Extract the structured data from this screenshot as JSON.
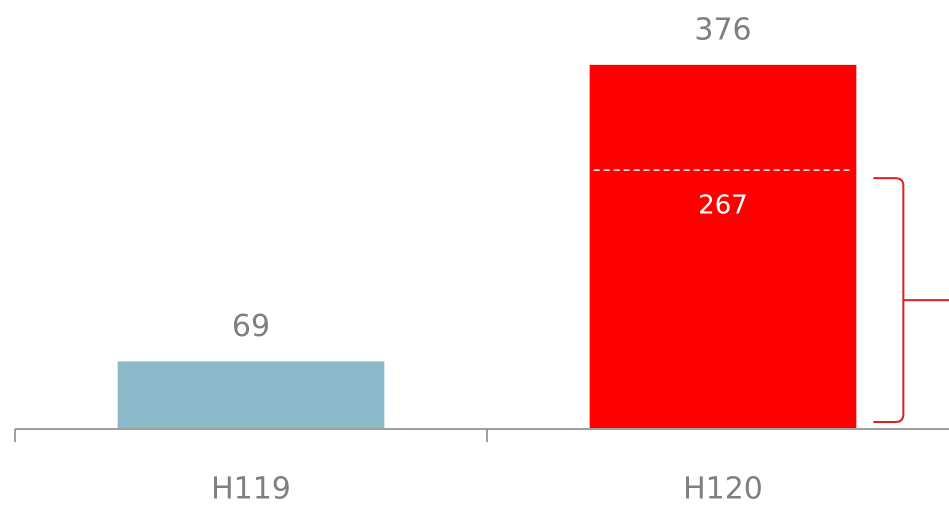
{
  "chart_data": {
    "type": "bar",
    "categories": [
      "H119",
      "H120"
    ],
    "values": [
      69,
      376
    ],
    "colors": [
      "#8cb9ca",
      "#ff0000"
    ],
    "ylim": [
      0,
      380
    ],
    "marker": {
      "category_index": 1,
      "value": 267
    }
  }
}
